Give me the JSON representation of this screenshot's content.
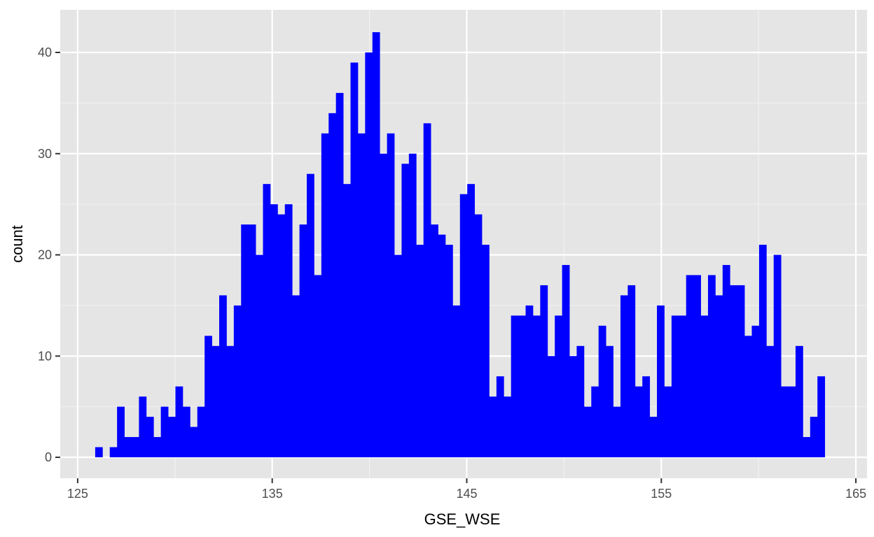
{
  "chart_data": {
    "type": "bar",
    "subtype": "histogram",
    "title": "",
    "xlabel": "GSE_WSE",
    "ylabel": "count",
    "xlim": [
      125,
      165
    ],
    "ylim": [
      0,
      44
    ],
    "x_ticks": [
      125,
      135,
      145,
      155,
      165
    ],
    "x_tick_labels": [
      "125",
      "135",
      "145",
      "155",
      "165"
    ],
    "y_ticks": [
      0,
      10,
      20,
      30,
      40
    ],
    "y_tick_labels": [
      "0",
      "10",
      "20",
      "30",
      "40"
    ],
    "grid": true,
    "legend": "none",
    "bin_start": 125.9,
    "bin_width": 0.375,
    "values": [
      1,
      0,
      1,
      5,
      2,
      2,
      6,
      4,
      2,
      5,
      4,
      7,
      5,
      3,
      5,
      12,
      11,
      16,
      11,
      15,
      23,
      23,
      20,
      27,
      25,
      24,
      25,
      16,
      23,
      28,
      18,
      32,
      34,
      36,
      27,
      39,
      32,
      40,
      42,
      30,
      32,
      20,
      29,
      30,
      21,
      33,
      23,
      22,
      21,
      15,
      26,
      27,
      24,
      21,
      6,
      8,
      6,
      14,
      14,
      15,
      14,
      17,
      10,
      14,
      19,
      10,
      11,
      5,
      7,
      13,
      11,
      5,
      16,
      17,
      7,
      8,
      4,
      15,
      7,
      14,
      14,
      18,
      18,
      14,
      18,
      16,
      19,
      17,
      17,
      12,
      13,
      21,
      11,
      20,
      7,
      7,
      11,
      2,
      4,
      8
    ]
  },
  "colors": {
    "bar": "#0000ff",
    "panel": "#e5e5e5",
    "grid_major": "#ffffff",
    "grid_minor": "#f2f2f2",
    "tick_text": "#4d4d4d",
    "tick_mark": "#333333"
  }
}
